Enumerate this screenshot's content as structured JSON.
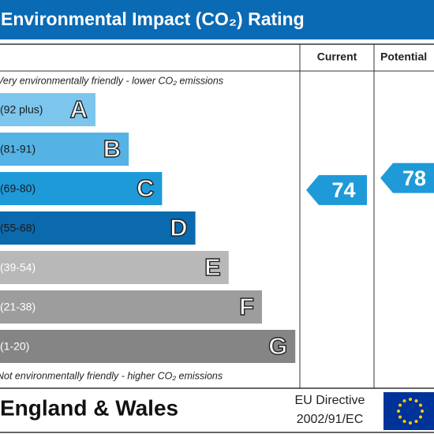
{
  "title": "Environmental Impact (CO₂) Rating",
  "columns": {
    "current": "Current",
    "potential": "Potential"
  },
  "top_note": "Very environmentally friendly - lower CO₂ emissions",
  "bands": [
    {
      "range": "(92 plus)",
      "letter": "A",
      "color": "#7cc6ee"
    },
    {
      "range": "(81-91)",
      "letter": "B",
      "color": "#55b2e5"
    },
    {
      "range": "(69-80)",
      "letter": "C",
      "color": "#1e9ad8"
    },
    {
      "range": "(55-68)",
      "letter": "D",
      "color": "#0b6aae"
    },
    {
      "range": "(39-54)",
      "letter": "E",
      "color": "#b8b8b8"
    },
    {
      "range": "(21-38)",
      "letter": "F",
      "color": "#9d9d9d"
    },
    {
      "range": "(1-20)",
      "letter": "G",
      "color": "#858585"
    }
  ],
  "bottom_note": "Not environmentally friendly - higher CO₂ emissions",
  "current": 74,
  "potential": 78,
  "footer": {
    "region": "England & Wales",
    "directive": [
      "EU Directive",
      "2002/91/EC"
    ]
  }
}
